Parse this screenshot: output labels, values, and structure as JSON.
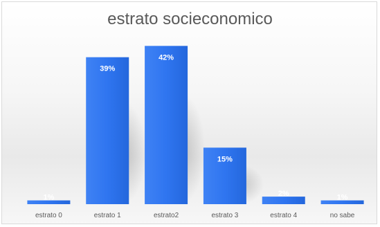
{
  "chart_data": {
    "type": "bar",
    "title": "estrato socieconomico",
    "categories": [
      "estrato 0",
      "estrato 1",
      "estrato2",
      "estrato 3",
      "estrato 4",
      "no sabe"
    ],
    "values": [
      1,
      39,
      42,
      15,
      2,
      1
    ],
    "data_labels": [
      "1%",
      "39%",
      "42%",
      "15%",
      "2%",
      "1%"
    ],
    "value_unit": "%",
    "ylim": [
      0,
      45
    ],
    "grid": false,
    "legend": "none",
    "bar_color": "#2f75f0",
    "label_color": "#ffffff"
  }
}
